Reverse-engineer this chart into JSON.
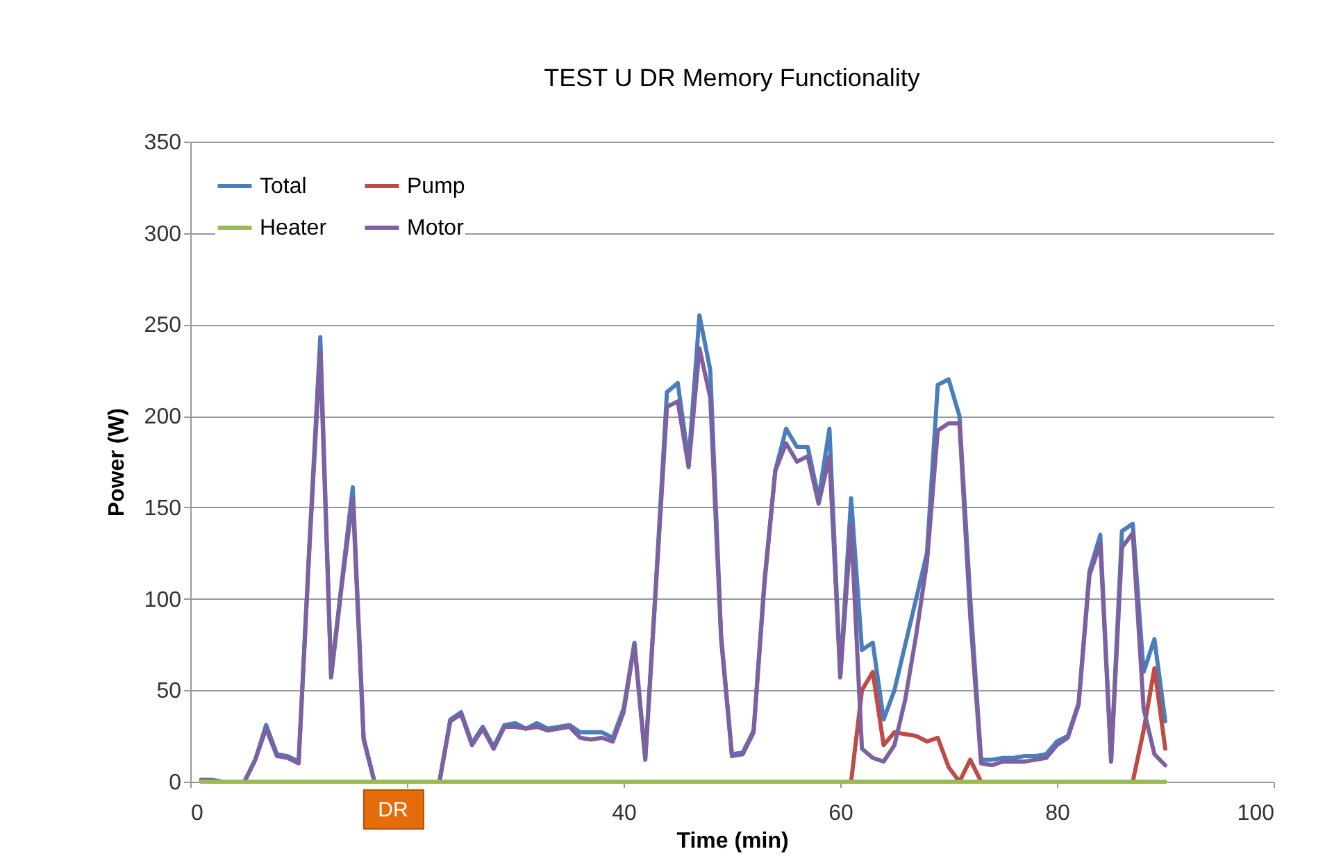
{
  "chart_data": {
    "type": "line",
    "title": "TEST U       DR Memory Functionality",
    "xlabel": "Time (min)",
    "ylabel": "Power (W)",
    "x": [
      1,
      2,
      3,
      4,
      5,
      6,
      7,
      8,
      9,
      10,
      11,
      12,
      13,
      14,
      15,
      16,
      17,
      18,
      19,
      20,
      21,
      22,
      23,
      24,
      25,
      26,
      27,
      28,
      29,
      30,
      31,
      32,
      33,
      34,
      35,
      36,
      37,
      38,
      39,
      40,
      41,
      42,
      43,
      44,
      45,
      46,
      47,
      48,
      49,
      50,
      51,
      52,
      53,
      54,
      55,
      56,
      57,
      58,
      59,
      60,
      61,
      62,
      63,
      64,
      65,
      66,
      67,
      68,
      69,
      70,
      71,
      72,
      73,
      74,
      75,
      76,
      77,
      78,
      79,
      80,
      81,
      82,
      83,
      84,
      85,
      86,
      87,
      88,
      89,
      90
    ],
    "series": [
      {
        "name": "Total",
        "color": "#4a7ebb",
        "values": [
          null,
          null,
          null,
          null,
          0,
          12,
          31,
          15,
          14,
          11,
          130,
          243,
          58,
          110,
          161,
          24,
          0,
          0,
          0,
          0,
          0,
          0,
          0,
          34,
          38,
          21,
          30,
          19,
          31,
          32,
          29,
          32,
          29,
          30,
          31,
          27,
          27,
          27,
          24,
          40,
          76,
          13,
          110,
          213,
          218,
          175,
          255,
          225,
          80,
          15,
          16,
          28,
          110,
          170,
          193,
          183,
          183,
          155,
          193,
          58,
          155,
          72,
          76,
          34,
          50,
          75,
          100,
          125,
          217,
          220,
          200,
          100,
          12,
          12,
          13,
          13,
          14,
          14,
          15,
          22,
          25,
          43,
          115,
          135,
          12,
          137,
          141,
          60,
          78,
          33
        ]
      },
      {
        "name": "Pump",
        "color": "#be4b48",
        "values": [
          null,
          null,
          null,
          null,
          null,
          null,
          null,
          null,
          null,
          null,
          null,
          null,
          null,
          null,
          null,
          null,
          null,
          null,
          null,
          null,
          null,
          null,
          null,
          null,
          null,
          null,
          null,
          null,
          null,
          null,
          null,
          null,
          null,
          null,
          null,
          null,
          null,
          null,
          null,
          null,
          null,
          null,
          null,
          null,
          null,
          null,
          null,
          null,
          null,
          null,
          null,
          null,
          null,
          null,
          null,
          null,
          null,
          null,
          null,
          null,
          0,
          50,
          60,
          20,
          27,
          26,
          25,
          22,
          24,
          8,
          0,
          12,
          0,
          null,
          null,
          null,
          null,
          null,
          null,
          null,
          null,
          null,
          null,
          null,
          null,
          null,
          0,
          28,
          62,
          18
        ]
      },
      {
        "name": "Heater",
        "color": "#98b954",
        "values": [
          0,
          0,
          0,
          0,
          0,
          0,
          0,
          0,
          0,
          0,
          0,
          0,
          0,
          0,
          0,
          0,
          0,
          0,
          0,
          0,
          0,
          0,
          0,
          0,
          0,
          0,
          0,
          0,
          0,
          0,
          0,
          0,
          0,
          0,
          0,
          0,
          0,
          0,
          0,
          0,
          0,
          0,
          0,
          0,
          0,
          0,
          0,
          0,
          0,
          0,
          0,
          0,
          0,
          0,
          0,
          0,
          0,
          0,
          0,
          0,
          0,
          0,
          0,
          0,
          0,
          0,
          0,
          0,
          0,
          0,
          0,
          0,
          0,
          0,
          0,
          0,
          0,
          0,
          0,
          0,
          0,
          0,
          0,
          0,
          0,
          0,
          0,
          0,
          0,
          0
        ]
      },
      {
        "name": "Motor",
        "color": "#7d60a0",
        "values": [
          1,
          1,
          0,
          0,
          0,
          12,
          29,
          14,
          13,
          10,
          128,
          235,
          57,
          108,
          155,
          23,
          0,
          0,
          0,
          0,
          0,
          0,
          0,
          33,
          37,
          20,
          29,
          18,
          30,
          30,
          29,
          30,
          28,
          29,
          30,
          24,
          23,
          24,
          22,
          38,
          75,
          12,
          108,
          205,
          208,
          172,
          237,
          210,
          78,
          14,
          15,
          27,
          108,
          170,
          185,
          175,
          178,
          152,
          178,
          57,
          140,
          18,
          13,
          11,
          20,
          45,
          80,
          120,
          192,
          196,
          196,
          90,
          10,
          9,
          11,
          11,
          11,
          12,
          13,
          20,
          24,
          42,
          113,
          130,
          11,
          128,
          136,
          40,
          15,
          9
        ]
      }
    ],
    "xlim": [
      0,
      100
    ],
    "xticks": [
      0,
      {
        "value": 20,
        "label": null
      },
      40,
      60,
      80,
      100
    ],
    "ylim": [
      0,
      350
    ],
    "yticks": [
      0,
      50,
      100,
      150,
      200,
      250,
      300,
      350
    ],
    "grid": "y",
    "legend": "top left",
    "marker": "none",
    "line_style": "solid",
    "annotations": [
      "DR"
    ]
  }
}
